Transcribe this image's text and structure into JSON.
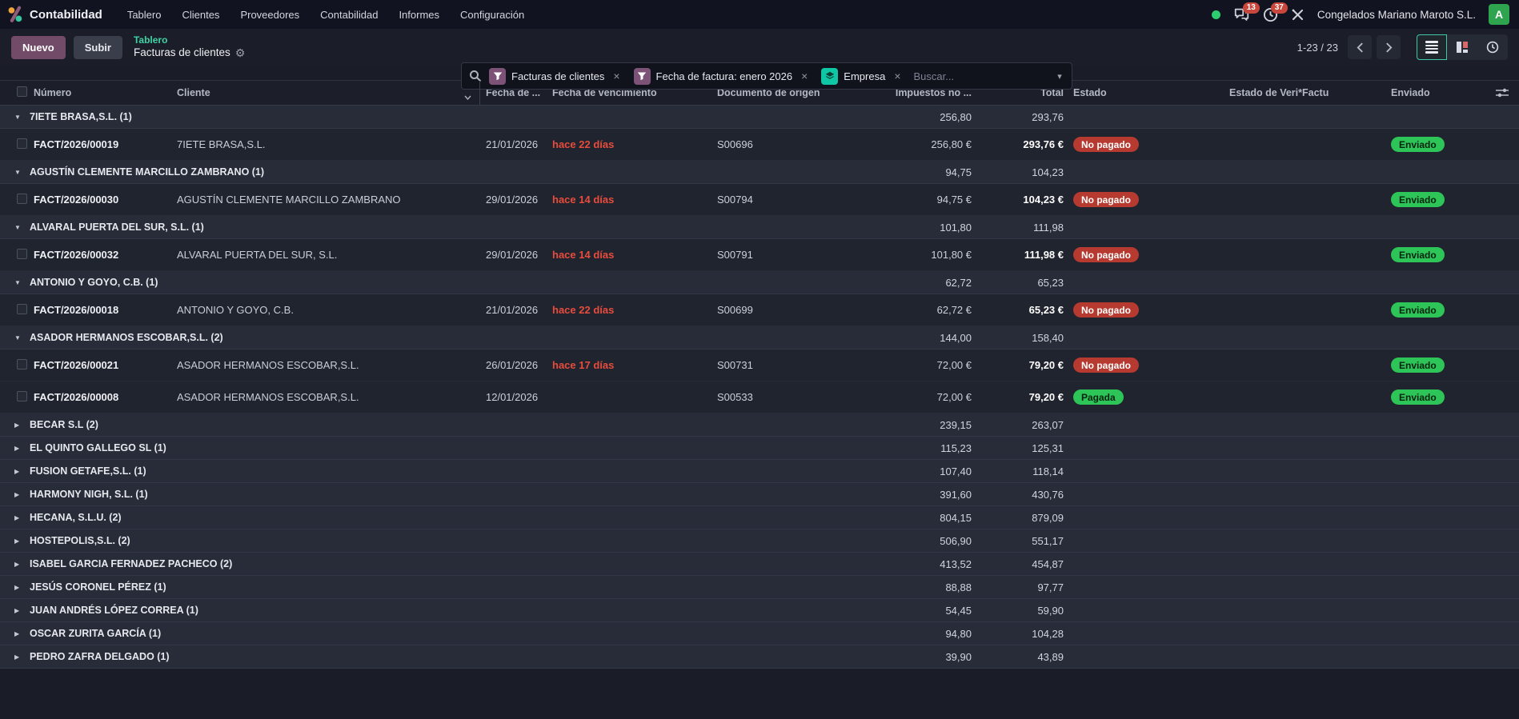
{
  "topnav": {
    "app_title": "Contabilidad",
    "menu": [
      "Tablero",
      "Clientes",
      "Proveedores",
      "Contabilidad",
      "Informes",
      "Configuración"
    ],
    "messages_badge": "13",
    "activities_badge": "37",
    "company": "Congelados Mariano Maroto S.L.",
    "avatar_letter": "A"
  },
  "control": {
    "new_label": "Nuevo",
    "upload_label": "Subir",
    "breadcrumb_parent": "Tablero",
    "breadcrumb_current": "Facturas de clientes",
    "search_placeholder": "Buscar...",
    "facets": [
      {
        "icon": "filter",
        "label": "Facturas de clientes"
      },
      {
        "icon": "filter",
        "label": "Fecha de factura: enero 2026"
      },
      {
        "icon": "group",
        "label": "Empresa"
      }
    ],
    "pager": "1-23 / 23"
  },
  "colors": {
    "accent_teal": "#3ed3a6",
    "primary_purple": "#714b67",
    "overdue_red": "#e74c3c",
    "pill_red": "#b73a30",
    "pill_green": "#2ec558",
    "badge_red": "#c9463d",
    "avatar_green": "#2ea44f"
  },
  "table": {
    "columns": {
      "number": "Número",
      "client": "Cliente",
      "date": "Fecha de ...",
      "due": "Fecha de vencimiento",
      "origin": "Documento de origen",
      "untaxed": "Impuestos no ...",
      "total": "Total",
      "status": "Estado",
      "verifactu": "Estado de Veri*Factu",
      "sent": "Enviado"
    },
    "groups": [
      {
        "name": "7IETE BRASA,S.L.",
        "count": 1,
        "untaxed": "256,80",
        "total": "293,76",
        "expanded": true,
        "rows": [
          {
            "number": "FACT/2026/00019",
            "client": "7IETE BRASA,S.L.",
            "date": "21/01/2026",
            "due": "hace 22 días",
            "origin": "S00696",
            "untaxed": "256,80 €",
            "total": "293,76 €",
            "status": "No pagado",
            "status_type": "danger",
            "sent": "Enviado"
          }
        ]
      },
      {
        "name": "AGUSTÍN CLEMENTE MARCILLO ZAMBRANO",
        "count": 1,
        "untaxed": "94,75",
        "total": "104,23",
        "expanded": true,
        "rows": [
          {
            "number": "FACT/2026/00030",
            "client": "AGUSTÍN CLEMENTE MARCILLO ZAMBRANO",
            "date": "29/01/2026",
            "due": "hace 14 días",
            "origin": "S00794",
            "untaxed": "94,75 €",
            "total": "104,23 €",
            "status": "No pagado",
            "status_type": "danger",
            "sent": "Enviado"
          }
        ]
      },
      {
        "name": "ALVARAL PUERTA DEL SUR, S.L.",
        "count": 1,
        "untaxed": "101,80",
        "total": "111,98",
        "expanded": true,
        "rows": [
          {
            "number": "FACT/2026/00032",
            "client": "ALVARAL PUERTA DEL SUR, S.L.",
            "date": "29/01/2026",
            "due": "hace 14 días",
            "origin": "S00791",
            "untaxed": "101,80 €",
            "total": "111,98 €",
            "status": "No pagado",
            "status_type": "danger",
            "sent": "Enviado"
          }
        ]
      },
      {
        "name": "ANTONIO Y GOYO, C.B.",
        "count": 1,
        "untaxed": "62,72",
        "total": "65,23",
        "expanded": true,
        "rows": [
          {
            "number": "FACT/2026/00018",
            "client": "ANTONIO Y GOYO, C.B.",
            "date": "21/01/2026",
            "due": "hace 22 días",
            "origin": "S00699",
            "untaxed": "62,72 €",
            "total": "65,23 €",
            "status": "No pagado",
            "status_type": "danger",
            "sent": "Enviado"
          }
        ]
      },
      {
        "name": "ASADOR HERMANOS ESCOBAR,S.L.",
        "count": 2,
        "untaxed": "144,00",
        "total": "158,40",
        "expanded": true,
        "rows": [
          {
            "number": "FACT/2026/00021",
            "client": "ASADOR HERMANOS ESCOBAR,S.L.",
            "date": "26/01/2026",
            "due": "hace 17 días",
            "origin": "S00731",
            "untaxed": "72,00 €",
            "total": "79,20 €",
            "status": "No pagado",
            "status_type": "danger",
            "sent": "Enviado"
          },
          {
            "number": "FACT/2026/00008",
            "client": "ASADOR HERMANOS ESCOBAR,S.L.",
            "date": "12/01/2026",
            "due": "",
            "origin": "S00533",
            "untaxed": "72,00 €",
            "total": "79,20 €",
            "status": "Pagada",
            "status_type": "success",
            "sent": "Enviado"
          }
        ]
      },
      {
        "name": "BECAR S.L",
        "count": 2,
        "untaxed": "239,15",
        "total": "263,07",
        "expanded": false,
        "rows": []
      },
      {
        "name": "EL QUINTO GALLEGO SL",
        "count": 1,
        "untaxed": "115,23",
        "total": "125,31",
        "expanded": false,
        "rows": []
      },
      {
        "name": "FUSION GETAFE,S.L.",
        "count": 1,
        "untaxed": "107,40",
        "total": "118,14",
        "expanded": false,
        "rows": []
      },
      {
        "name": "HARMONY NIGH, S.L.",
        "count": 1,
        "untaxed": "391,60",
        "total": "430,76",
        "expanded": false,
        "rows": []
      },
      {
        "name": "HECANA, S.L.U.",
        "count": 2,
        "untaxed": "804,15",
        "total": "879,09",
        "expanded": false,
        "rows": []
      },
      {
        "name": "HOSTEPOLIS,S.L.",
        "count": 2,
        "untaxed": "506,90",
        "total": "551,17",
        "expanded": false,
        "rows": []
      },
      {
        "name": "ISABEL GARCIA FERNADEZ PACHECO",
        "count": 2,
        "untaxed": "413,52",
        "total": "454,87",
        "expanded": false,
        "rows": []
      },
      {
        "name": "JESÚS CORONEL PÉREZ",
        "count": 1,
        "untaxed": "88,88",
        "total": "97,77",
        "expanded": false,
        "rows": []
      },
      {
        "name": "JUAN ANDRÉS LÓPEZ CORREA",
        "count": 1,
        "untaxed": "54,45",
        "total": "59,90",
        "expanded": false,
        "rows": []
      },
      {
        "name": "OSCAR ZURITA GARCÍA",
        "count": 1,
        "untaxed": "94,80",
        "total": "104,28",
        "expanded": false,
        "rows": []
      },
      {
        "name": "PEDRO ZAFRA DELGADO",
        "count": 1,
        "untaxed": "39,90",
        "total": "43,89",
        "expanded": false,
        "rows": []
      }
    ]
  }
}
